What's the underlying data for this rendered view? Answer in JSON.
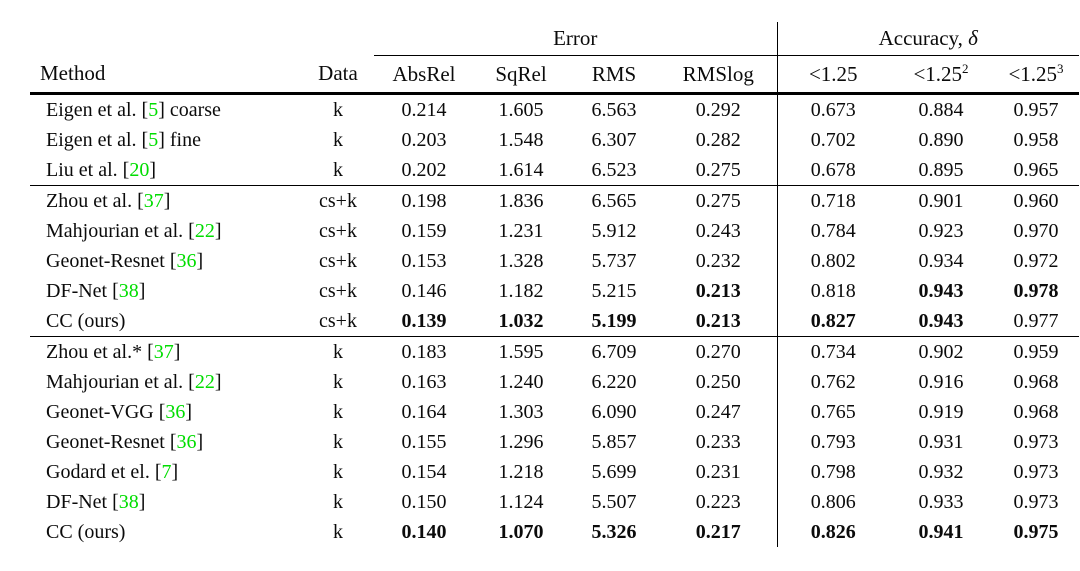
{
  "colors": {
    "citation_green": "#00dd00",
    "text": "#0b0b0b",
    "background": "#ffffff"
  },
  "table": {
    "group_header": {
      "error": "Error",
      "accuracy_pre": "Accuracy, ",
      "accuracy_delta": "δ"
    },
    "columns": {
      "method": "Method",
      "data": "Data",
      "error_cols": [
        "AbsRel",
        "SqRel",
        "RMS",
        "RMSlog"
      ],
      "accuracy_cols": [
        {
          "base": "<1.25",
          "sup": ""
        },
        {
          "base": "<1.25",
          "sup": "2"
        },
        {
          "base": "<1.25",
          "sup": "3"
        }
      ]
    },
    "sections": [
      {
        "rows": [
          {
            "method_pre": "Eigen et al. [",
            "cite": "5",
            "method_post": "] coarse",
            "data": "k",
            "values": [
              "0.214",
              "1.605",
              "6.563",
              "0.292",
              "0.673",
              "0.884",
              "0.957"
            ],
            "bold": [
              false,
              false,
              false,
              false,
              false,
              false,
              false
            ]
          },
          {
            "method_pre": "Eigen et al. [",
            "cite": "5",
            "method_post": "] fine",
            "data": "k",
            "values": [
              "0.203",
              "1.548",
              "6.307",
              "0.282",
              "0.702",
              "0.890",
              "0.958"
            ],
            "bold": [
              false,
              false,
              false,
              false,
              false,
              false,
              false
            ]
          },
          {
            "method_pre": "Liu et al. [",
            "cite": "20",
            "method_post": "]",
            "data": "k",
            "values": [
              "0.202",
              "1.614",
              "6.523",
              "0.275",
              "0.678",
              "0.895",
              "0.965"
            ],
            "bold": [
              false,
              false,
              false,
              false,
              false,
              false,
              false
            ]
          }
        ]
      },
      {
        "rows": [
          {
            "method_pre": "Zhou et al. [",
            "cite": "37",
            "method_post": "]",
            "data": "cs+k",
            "values": [
              "0.198",
              "1.836",
              "6.565",
              "0.275",
              "0.718",
              "0.901",
              "0.960"
            ],
            "bold": [
              false,
              false,
              false,
              false,
              false,
              false,
              false
            ]
          },
          {
            "method_pre": "Mahjourian et al. [",
            "cite": "22",
            "method_post": "]",
            "data": "cs+k",
            "values": [
              "0.159",
              "1.231",
              "5.912",
              "0.243",
              "0.784",
              "0.923",
              "0.970"
            ],
            "bold": [
              false,
              false,
              false,
              false,
              false,
              false,
              false
            ]
          },
          {
            "method_pre": "Geonet-Resnet [",
            "cite": "36",
            "method_post": "]",
            "data": "cs+k",
            "values": [
              "0.153",
              "1.328",
              "5.737",
              "0.232",
              "0.802",
              "0.934",
              "0.972"
            ],
            "bold": [
              false,
              false,
              false,
              false,
              false,
              false,
              false
            ]
          },
          {
            "method_pre": "DF-Net [",
            "cite": "38",
            "method_post": "]",
            "data": "cs+k",
            "values": [
              "0.146",
              "1.182",
              "5.215",
              "0.213",
              "0.818",
              "0.943",
              "0.978"
            ],
            "bold": [
              false,
              false,
              false,
              true,
              false,
              true,
              true
            ]
          },
          {
            "method_pre": "CC (ours)",
            "cite": "",
            "method_post": "",
            "data": "cs+k",
            "values": [
              "0.139",
              "1.032",
              "5.199",
              "0.213",
              "0.827",
              "0.943",
              "0.977"
            ],
            "bold": [
              true,
              true,
              true,
              true,
              true,
              true,
              false
            ]
          }
        ]
      },
      {
        "rows": [
          {
            "method_pre": "Zhou et al.* [",
            "cite": "37",
            "method_post": "]",
            "data": "k",
            "values": [
              "0.183",
              "1.595",
              "6.709",
              "0.270",
              "0.734",
              "0.902",
              "0.959"
            ],
            "bold": [
              false,
              false,
              false,
              false,
              false,
              false,
              false
            ]
          },
          {
            "method_pre": "Mahjourian et al. [",
            "cite": "22",
            "method_post": "]",
            "data": "k",
            "values": [
              "0.163",
              "1.240",
              "6.220",
              "0.250",
              "0.762",
              "0.916",
              "0.968"
            ],
            "bold": [
              false,
              false,
              false,
              false,
              false,
              false,
              false
            ]
          },
          {
            "method_pre": "Geonet-VGG [",
            "cite": "36",
            "method_post": "]",
            "data": "k",
            "values": [
              "0.164",
              "1.303",
              "6.090",
              "0.247",
              "0.765",
              "0.919",
              "0.968"
            ],
            "bold": [
              false,
              false,
              false,
              false,
              false,
              false,
              false
            ]
          },
          {
            "method_pre": "Geonet-Resnet [",
            "cite": "36",
            "method_post": "]",
            "data": "k",
            "values": [
              "0.155",
              "1.296",
              "5.857",
              "0.233",
              "0.793",
              "0.931",
              "0.973"
            ],
            "bold": [
              false,
              false,
              false,
              false,
              false,
              false,
              false
            ]
          },
          {
            "method_pre": "Godard et el. [",
            "cite": "7",
            "method_post": "]",
            "data": "k",
            "values": [
              "0.154",
              "1.218",
              "5.699",
              "0.231",
              "0.798",
              "0.932",
              "0.973"
            ],
            "bold": [
              false,
              false,
              false,
              false,
              false,
              false,
              false
            ]
          },
          {
            "method_pre": "DF-Net [",
            "cite": "38",
            "method_post": "]",
            "data": "k",
            "values": [
              "0.150",
              "1.124",
              "5.507",
              "0.223",
              "0.806",
              "0.933",
              "0.973"
            ],
            "bold": [
              false,
              false,
              false,
              false,
              false,
              false,
              false
            ]
          },
          {
            "method_pre": "CC (ours)",
            "cite": "",
            "method_post": "",
            "data": "k",
            "values": [
              "0.140",
              "1.070",
              "5.326",
              "0.217",
              "0.826",
              "0.941",
              "0.975"
            ],
            "bold": [
              true,
              true,
              true,
              true,
              true,
              true,
              true
            ]
          }
        ]
      }
    ]
  }
}
